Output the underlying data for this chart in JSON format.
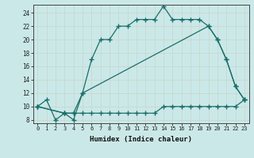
{
  "xlabel": "Humidex (Indice chaleur)",
  "bg_color": "#cbe8e8",
  "grid_color": "#d8eeee",
  "line_color": "#1a6e6a",
  "xlim": [
    -0.5,
    23.5
  ],
  "ylim": [
    7.5,
    25.2
  ],
  "xticks": [
    0,
    1,
    2,
    3,
    4,
    5,
    6,
    7,
    8,
    9,
    10,
    11,
    12,
    13,
    14,
    15,
    16,
    17,
    18,
    19,
    20,
    21,
    22,
    23
  ],
  "yticks": [
    8,
    10,
    12,
    14,
    16,
    18,
    20,
    22,
    24
  ],
  "line1_x": [
    0,
    1,
    2,
    3,
    4,
    5,
    6,
    7,
    8,
    9,
    10,
    11,
    12,
    13,
    14,
    15,
    16,
    17,
    18,
    19,
    20,
    21,
    22,
    23
  ],
  "line1_y": [
    10,
    11,
    8,
    9,
    8,
    12,
    17,
    20,
    20,
    22,
    22,
    23,
    23,
    23,
    25,
    23,
    23,
    23,
    23,
    22,
    20,
    17,
    13,
    11
  ],
  "line2_x": [
    0,
    3,
    4,
    5,
    19,
    20,
    21,
    22,
    23
  ],
  "line2_y": [
    10,
    9,
    9,
    12,
    22,
    20,
    17,
    13,
    11
  ],
  "line3_x": [
    0,
    3,
    4,
    5,
    6,
    7,
    8,
    9,
    10,
    11,
    12,
    13,
    14,
    15,
    16,
    17,
    18,
    19,
    20,
    21,
    22,
    23
  ],
  "line3_y": [
    10,
    9,
    9,
    9,
    9,
    9,
    9,
    9,
    9,
    9,
    9,
    9,
    10,
    10,
    10,
    10,
    10,
    10,
    10,
    10,
    10,
    11
  ]
}
